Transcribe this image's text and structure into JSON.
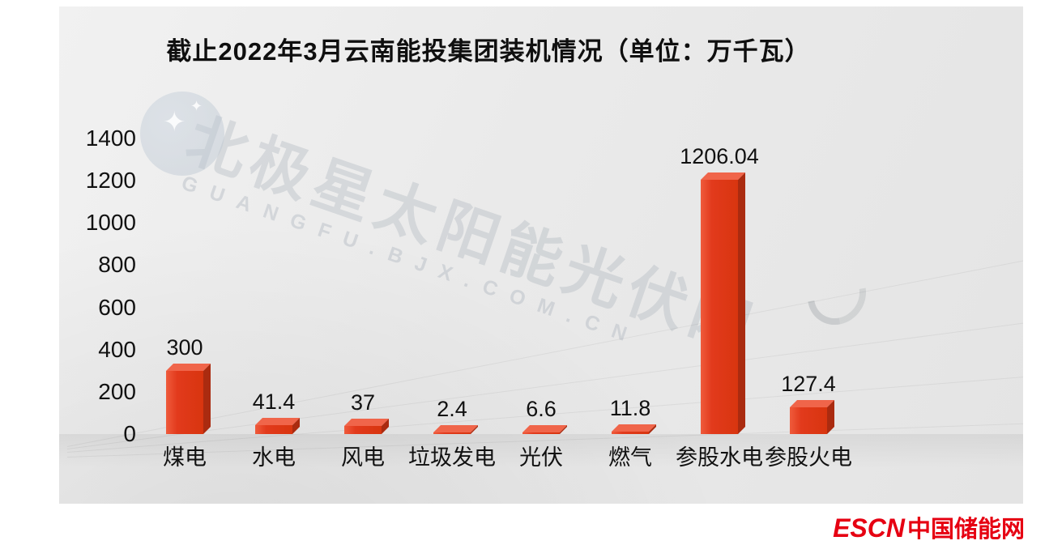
{
  "chart_data": {
    "type": "bar",
    "title": "截止2022年3月云南能投集团装机情况（单位：万千瓦）",
    "categories": [
      "煤电",
      "水电",
      "风电",
      "垃圾发电",
      "光伏",
      "燃气",
      "参股水电",
      "参股火电"
    ],
    "values": [
      300,
      41.4,
      37,
      2.4,
      6.6,
      11.8,
      1206.04,
      127.4
    ],
    "value_labels": [
      "300",
      "41.4",
      "37",
      "2.4",
      "6.6",
      "11.8",
      "1206.04",
      "127.4"
    ],
    "xlabel": "",
    "ylabel": "",
    "ylim": [
      0,
      1400
    ],
    "yticks": [
      1400,
      1200,
      1000,
      800,
      600,
      400,
      200,
      0
    ],
    "grid": false,
    "legend": null,
    "bar_color": "#e23a1c",
    "bar_side_color": "#aa2b10",
    "bar_top_color": "#f0654a"
  },
  "watermark": {
    "line1": "北极星太阳能光伏网",
    "line2": "GUANGFU.BJX.COM.CN"
  },
  "footer_logo": {
    "escn": "ESCN",
    "site": "中国储能网"
  }
}
